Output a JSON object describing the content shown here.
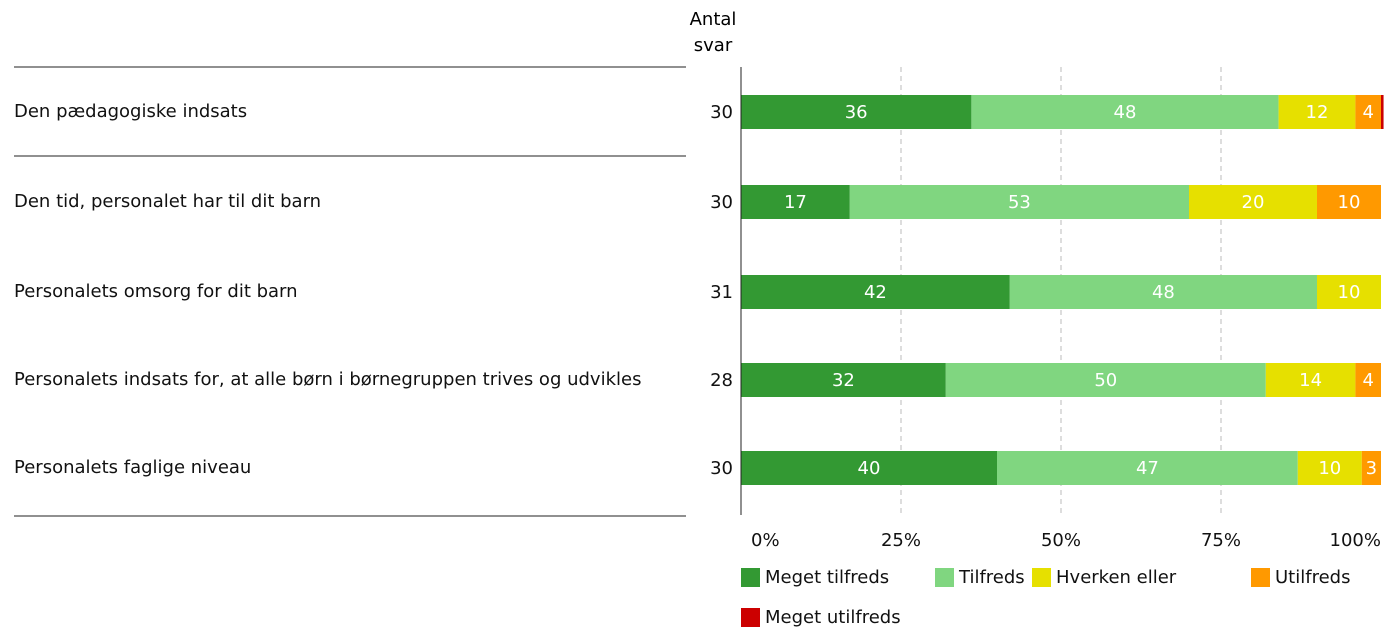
{
  "chart_data": {
    "type": "bar",
    "orientation": "horizontal",
    "stacked": true,
    "count_label": [
      "Antal",
      "svar"
    ],
    "categories": [
      "Den pædagogiske indsats",
      "Den tid, personalet har til dit barn",
      "Personalets omsorg for dit barn",
      "Personalets indsats for, at alle børn i børnegruppen trives og udvikles",
      "Personalets faglige niveau"
    ],
    "counts": [
      30,
      30,
      31,
      28,
      30
    ],
    "series": [
      {
        "name": "Meget tilfreds",
        "color": "#339933",
        "values": [
          36,
          17,
          42,
          32,
          40
        ]
      },
      {
        "name": "Tilfreds",
        "color": "#80d680",
        "values": [
          48,
          53,
          48,
          50,
          47
        ]
      },
      {
        "name": "Hverken eller",
        "color": "#e6e000",
        "values": [
          12,
          20,
          10,
          14,
          10
        ]
      },
      {
        "name": "Utilfreds",
        "color": "#ff9900",
        "values": [
          4,
          10,
          0,
          4,
          3
        ]
      },
      {
        "name": "Meget utilfreds",
        "color": "#cc0000",
        "values": [
          0.4,
          0,
          0,
          0,
          0
        ]
      }
    ],
    "xlim": [
      0,
      100
    ],
    "xticks": [
      {
        "value": 0,
        "label": "0%"
      },
      {
        "value": 25,
        "label": "25%"
      },
      {
        "value": 50,
        "label": "50%"
      },
      {
        "value": 75,
        "label": "75%"
      },
      {
        "value": 100,
        "label": "100%"
      }
    ],
    "grid": true
  }
}
